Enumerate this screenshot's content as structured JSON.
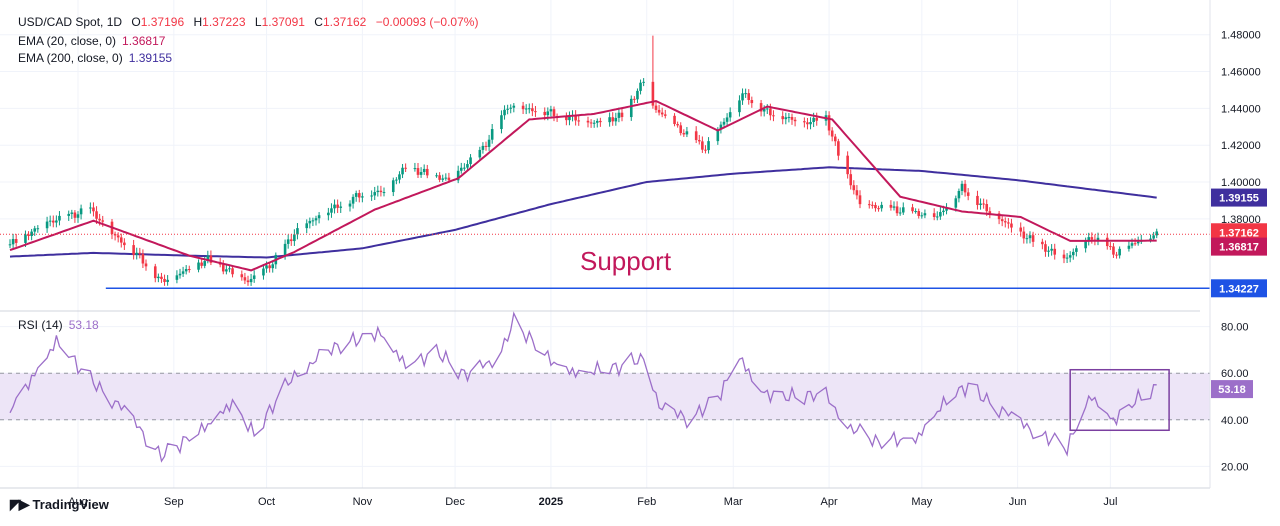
{
  "header": {
    "symbol": "USD/CAD Spot, 1D",
    "o_label": "O",
    "o": "1.37196",
    "h_label": "H",
    "h": "1.37223",
    "l_label": "L",
    "l": "1.37091",
    "c_label": "C",
    "c": "1.37162",
    "change": "−0.00093 (−0.07%)"
  },
  "indicators": {
    "ema20": {
      "label": "EMA (20, close, 0)",
      "value": "1.36817",
      "color": "#c2185b"
    },
    "ema200": {
      "label": "EMA (200, close, 0)",
      "value": "1.39155",
      "color": "#3f2f9e"
    },
    "rsi": {
      "label": "RSI (14)",
      "value": "53.18",
      "color": "#9c6fc9"
    }
  },
  "colors": {
    "up": "#089981",
    "down": "#f23645",
    "support": "#1e53e5",
    "rsi_band": "#ede5f7",
    "grid": "#f0f3fa"
  },
  "annotation": {
    "support_label": "Support"
  },
  "branding": {
    "name": "TradingView"
  },
  "chart_data": [
    {
      "type": "candlestick",
      "title": "USD/CAD Spot, 1D",
      "x_ticks": [
        "Aug",
        "Sep",
        "Oct",
        "Nov",
        "Dec",
        "2025",
        "Feb",
        "Mar",
        "Apr",
        "May",
        "Jun",
        "Jul"
      ],
      "y_ticks": [
        "1.48000",
        "1.46000",
        "1.44000",
        "1.42000",
        "1.40000",
        "1.38000"
      ],
      "ylim": [
        1.337,
        1.488
      ],
      "last_price": "1.37162",
      "price_labels": [
        {
          "text": "1.39155",
          "value": 1.39155,
          "color": "#3f2f9e"
        },
        {
          "text": "1.37162",
          "value": 1.37162,
          "color": "#f23645"
        },
        {
          "text": "1.36817",
          "value": 1.36817,
          "color": "#c2185b"
        },
        {
          "text": "1.34227",
          "value": 1.34227,
          "color": "#1e53e5"
        }
      ],
      "support_level": 1.34227,
      "close_anchors": [
        [
          "2024-07-10",
          1.366
        ],
        [
          "2024-07-22",
          1.378
        ],
        [
          "2024-08-05",
          1.385
        ],
        [
          "2024-08-12",
          1.372
        ],
        [
          "2024-08-20",
          1.361
        ],
        [
          "2024-08-28",
          1.346
        ],
        [
          "2024-09-05",
          1.352
        ],
        [
          "2024-09-12",
          1.358
        ],
        [
          "2024-09-25",
          1.346
        ],
        [
          "2024-10-03",
          1.356
        ],
        [
          "2024-10-10",
          1.372
        ],
        [
          "2024-10-18",
          1.382
        ],
        [
          "2024-10-31",
          1.393
        ],
        [
          "2024-11-08",
          1.395
        ],
        [
          "2024-11-15",
          1.408
        ],
        [
          "2024-11-29",
          1.401
        ],
        [
          "2024-12-10",
          1.418
        ],
        [
          "2024-12-18",
          1.441
        ],
        [
          "2024-12-31",
          1.438
        ],
        [
          "2025-01-15",
          1.432
        ],
        [
          "2025-01-24",
          1.436
        ],
        [
          "2025-01-31",
          1.455
        ],
        [
          "2025-02-03",
          1.441
        ],
        [
          "2025-02-12",
          1.428
        ],
        [
          "2025-02-20",
          1.418
        ],
        [
          "2025-03-04",
          1.448
        ],
        [
          "2025-03-12",
          1.438
        ],
        [
          "2025-03-24",
          1.432
        ],
        [
          "2025-03-31",
          1.435
        ],
        [
          "2025-04-04",
          1.415
        ],
        [
          "2025-04-11",
          1.388
        ],
        [
          "2025-04-22",
          1.385
        ],
        [
          "2025-05-06",
          1.381
        ],
        [
          "2025-05-14",
          1.397
        ],
        [
          "2025-05-22",
          1.385
        ],
        [
          "2025-06-02",
          1.372
        ],
        [
          "2025-06-16",
          1.358
        ],
        [
          "2025-06-25",
          1.37
        ],
        [
          "2025-07-03",
          1.361
        ],
        [
          "2025-07-10",
          1.368
        ],
        [
          "2025-07-16",
          1.3716
        ]
      ],
      "ema20_anchors": [
        [
          "2024-07-10",
          1.363
        ],
        [
          "2024-08-06",
          1.379
        ],
        [
          "2024-09-06",
          1.36
        ],
        [
          "2024-09-26",
          1.352
        ],
        [
          "2024-10-10",
          1.362
        ],
        [
          "2024-11-05",
          1.385
        ],
        [
          "2024-12-02",
          1.402
        ],
        [
          "2024-12-25",
          1.434
        ],
        [
          "2025-01-15",
          1.437
        ],
        [
          "2025-02-04",
          1.444
        ],
        [
          "2025-02-24",
          1.428
        ],
        [
          "2025-03-12",
          1.441
        ],
        [
          "2025-04-02",
          1.434
        ],
        [
          "2025-04-24",
          1.392
        ],
        [
          "2025-05-14",
          1.384
        ],
        [
          "2025-06-02",
          1.381
        ],
        [
          "2025-06-18",
          1.368
        ],
        [
          "2025-07-16",
          1.36817
        ]
      ],
      "ema200_anchors": [
        [
          "2024-07-10",
          1.3595
        ],
        [
          "2024-08-06",
          1.3615
        ],
        [
          "2024-09-06",
          1.36
        ],
        [
          "2024-10-01",
          1.359
        ],
        [
          "2024-11-01",
          1.364
        ],
        [
          "2024-12-01",
          1.374
        ],
        [
          "2025-01-01",
          1.388
        ],
        [
          "2025-02-01",
          1.4
        ],
        [
          "2025-03-01",
          1.4045
        ],
        [
          "2025-04-01",
          1.408
        ],
        [
          "2025-05-01",
          1.406
        ],
        [
          "2025-06-01",
          1.401
        ],
        [
          "2025-07-16",
          1.39155
        ]
      ]
    },
    {
      "type": "line",
      "title": "RSI (14)",
      "x_ticks": [
        "Aug",
        "Sep",
        "Oct",
        "Nov",
        "Dec",
        "2025",
        "Feb",
        "Mar",
        "Apr",
        "May",
        "Jun",
        "Jul"
      ],
      "y_ticks": [
        "80.00",
        "60.00",
        "40.00",
        "20.00"
      ],
      "ylim": [
        15,
        85
      ],
      "band": [
        40,
        60
      ],
      "last_value": "53.18",
      "highlight_box": {
        "x": [
          "2025-06-18",
          "2025-07-20"
        ],
        "y": [
          35.5,
          61.5
        ]
      },
      "anchors": [
        [
          "2024-07-10",
          45
        ],
        [
          "2024-07-25",
          73
        ],
        [
          "2024-08-05",
          58
        ],
        [
          "2024-08-15",
          45
        ],
        [
          "2024-08-28",
          25
        ],
        [
          "2024-09-10",
          35
        ],
        [
          "2024-09-20",
          48
        ],
        [
          "2024-09-27",
          33
        ],
        [
          "2024-10-10",
          60
        ],
        [
          "2024-10-25",
          72
        ],
        [
          "2024-11-06",
          78
        ],
        [
          "2024-11-15",
          63
        ],
        [
          "2024-11-25",
          70
        ],
        [
          "2024-12-05",
          58
        ],
        [
          "2024-12-15",
          68
        ],
        [
          "2024-12-20",
          82
        ],
        [
          "2024-12-31",
          66
        ],
        [
          "2025-01-10",
          60
        ],
        [
          "2025-01-22",
          62
        ],
        [
          "2025-02-01",
          68
        ],
        [
          "2025-02-05",
          45
        ],
        [
          "2025-02-15",
          40
        ],
        [
          "2025-02-25",
          52
        ],
        [
          "2025-03-03",
          66
        ],
        [
          "2025-03-10",
          52
        ],
        [
          "2025-03-20",
          50
        ],
        [
          "2025-03-31",
          50
        ],
        [
          "2025-04-08",
          37
        ],
        [
          "2025-04-16",
          30
        ],
        [
          "2025-04-30",
          33
        ],
        [
          "2025-05-09",
          48
        ],
        [
          "2025-05-16",
          55
        ],
        [
          "2025-05-23",
          48
        ],
        [
          "2025-06-02",
          38
        ],
        [
          "2025-06-12",
          32
        ],
        [
          "2025-06-17",
          28
        ],
        [
          "2025-06-25",
          50
        ],
        [
          "2025-07-02",
          40
        ],
        [
          "2025-07-09",
          48
        ],
        [
          "2025-07-16",
          53.18
        ]
      ]
    }
  ]
}
